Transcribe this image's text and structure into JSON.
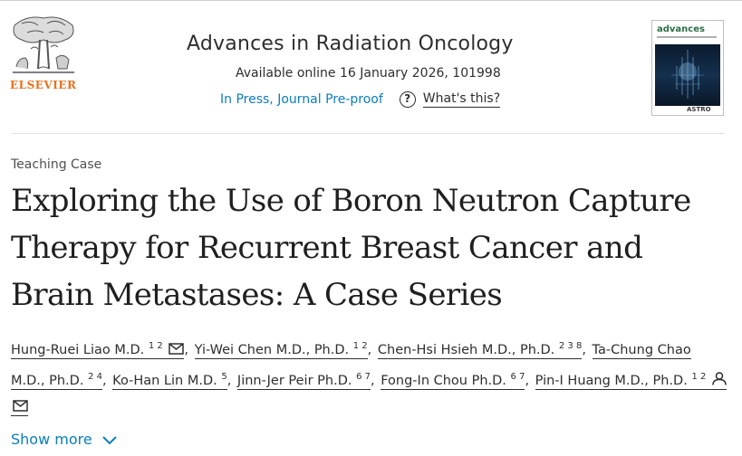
{
  "publisher": {
    "name": "ELSEVIER",
    "logo_icon": "elsevier-tree-logo",
    "accent_color": "#e9711c"
  },
  "journal": {
    "name": "Advances in Radiation Oncology",
    "available": "Available online 16 January 2026, 101998",
    "status_link": "In Press, Journal Pre-proof",
    "help_link": "What's this?",
    "help_icon": "question-circle-icon",
    "link_color": "#0c7dbb"
  },
  "cover": {
    "title": "advances",
    "footer": "ASTRO"
  },
  "article": {
    "type": "Teaching Case",
    "title": "Exploring the Use of Boron Neutron Capture Therapy for Recurrent Breast Cancer and Brain Metastases: A Case Series"
  },
  "authors": [
    {
      "name": "Hung-Ruei Liao M.D.",
      "aff": "1 2",
      "icons": [
        "mail-icon"
      ]
    },
    {
      "name": "Yi-Wei Chen M.D., Ph.D.",
      "aff": "1 2",
      "icons": []
    },
    {
      "name": "Chen-Hsi Hsieh M.D., Ph.D.",
      "aff": "2 3 8",
      "icons": []
    },
    {
      "name": "Ta-Chung Chao M.D., Ph.D.",
      "aff": "2 4",
      "icons": []
    },
    {
      "name": "Ko-Han Lin M.D.",
      "aff": "5",
      "icons": []
    },
    {
      "name": "Jinn-Jer Peir Ph.D.",
      "aff": "6 7",
      "icons": []
    },
    {
      "name": "Fong-In Chou Ph.D.",
      "aff": "6 7",
      "icons": []
    },
    {
      "name": "Pin-I Huang M.D., Ph.D.",
      "aff": "1 2",
      "icons": [
        "person-icon",
        "mail-icon"
      ]
    }
  ],
  "separator": ",",
  "show_more": {
    "label": "Show more",
    "icon": "chevron-down-icon"
  }
}
